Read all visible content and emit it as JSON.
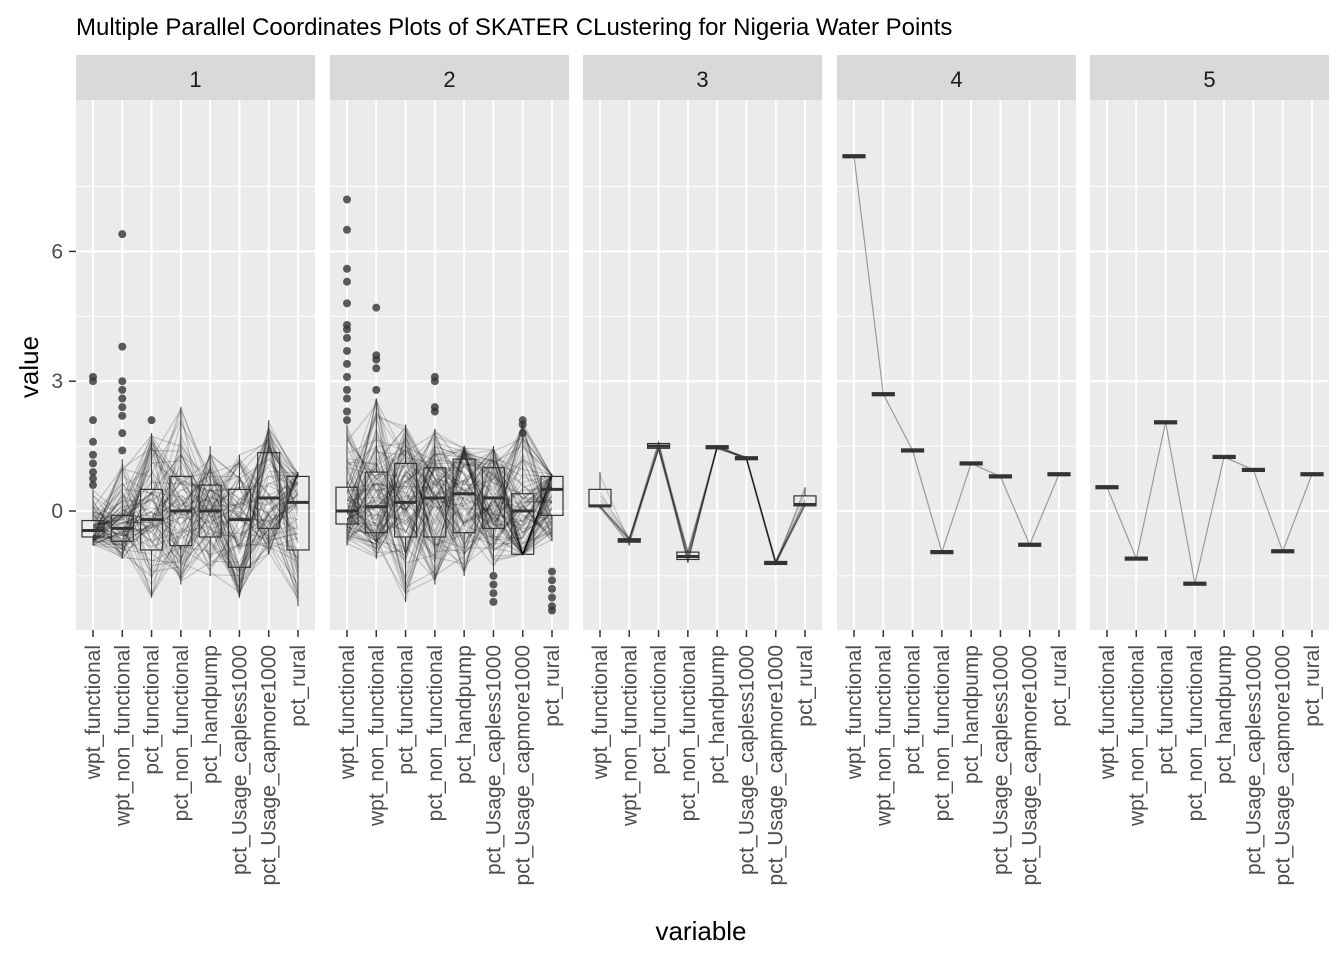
{
  "chart_data": {
    "type": "line",
    "title": "Multiple Parallel Coordinates Plots of SKATER CLustering for Nigeria Water Points",
    "xlabel": "variable",
    "ylabel": "value",
    "ylim": [
      -2.75,
      9.5
    ],
    "yticks": [
      0,
      3,
      6
    ],
    "grid": true,
    "legend": "none",
    "facets": [
      "1",
      "2",
      "3",
      "4",
      "5"
    ],
    "variables": [
      "wpt_functional",
      "wpt_non_functional",
      "pct_functional",
      "pct_non_functional",
      "pct_handpump",
      "pct_Usage_capless1000",
      "pct_Usage_capmore1000",
      "pct_rural"
    ],
    "panels": [
      {
        "cluster": "1",
        "boxplots": [
          {
            "min": -0.8,
            "q1": -0.6,
            "median": -0.45,
            "q3": -0.22,
            "max": 0.5,
            "outliers": [
              0.6,
              0.75,
              0.9,
              1.1,
              1.3,
              1.6,
              2.1,
              3.0,
              3.1
            ]
          },
          {
            "min": -1.1,
            "q1": -0.7,
            "median": -0.4,
            "q3": -0.1,
            "max": 1.2,
            "outliers": [
              1.4,
              1.8,
              2.2,
              2.4,
              2.6,
              2.8,
              3.0,
              3.8,
              6.4
            ]
          },
          {
            "min": -2.0,
            "q1": -0.9,
            "median": -0.2,
            "q3": 0.5,
            "max": 1.8,
            "outliers": [
              2.1
            ]
          },
          {
            "min": -1.7,
            "q1": -0.8,
            "median": 0.0,
            "q3": 0.8,
            "max": 2.4,
            "outliers": []
          },
          {
            "min": -1.5,
            "q1": -0.6,
            "median": 0.0,
            "q3": 0.6,
            "max": 1.5,
            "outliers": []
          },
          {
            "min": -2.0,
            "q1": -1.3,
            "median": -0.2,
            "q3": 0.5,
            "max": 1.3,
            "outliers": []
          },
          {
            "min": -1.0,
            "q1": -0.4,
            "median": 0.3,
            "q3": 1.35,
            "max": 2.1,
            "outliers": []
          },
          {
            "min": -2.2,
            "q1": -0.9,
            "median": 0.2,
            "q3": 0.8,
            "max": 0.9,
            "outliers": []
          }
        ]
      },
      {
        "cluster": "2",
        "boxplots": [
          {
            "min": -0.8,
            "q1": -0.3,
            "median": 0.0,
            "q3": 0.55,
            "max": 2.0,
            "outliers": [
              2.1,
              2.3,
              2.6,
              2.8,
              3.1,
              3.4,
              3.7,
              4.0,
              4.2,
              4.3,
              4.8,
              5.3,
              5.6,
              6.5,
              7.2
            ]
          },
          {
            "min": -1.1,
            "q1": -0.5,
            "median": 0.1,
            "q3": 0.9,
            "max": 2.6,
            "outliers": [
              2.8,
              3.3,
              3.5,
              3.6,
              4.7
            ]
          },
          {
            "min": -2.1,
            "q1": -0.6,
            "median": 0.2,
            "q3": 1.1,
            "max": 2.0,
            "outliers": []
          },
          {
            "min": -1.7,
            "q1": -0.6,
            "median": 0.3,
            "q3": 1.0,
            "max": 1.9,
            "outliers": [
              2.3,
              2.4,
              3.0,
              3.1
            ]
          },
          {
            "min": -1.5,
            "q1": -0.5,
            "median": 0.4,
            "q3": 1.2,
            "max": 1.5,
            "outliers": []
          },
          {
            "min": -1.4,
            "q1": -0.4,
            "median": 0.3,
            "q3": 1.0,
            "max": 1.5,
            "outliers": [
              -1.5,
              -1.7,
              -1.9,
              -2.1
            ]
          },
          {
            "min": -1.0,
            "q1": -1.0,
            "median": 0.0,
            "q3": 0.4,
            "max": 2.1,
            "outliers": [
              1.8,
              2.0,
              2.1
            ]
          },
          {
            "min": -0.7,
            "q1": -0.1,
            "median": 0.5,
            "q3": 0.8,
            "max": 0.85,
            "outliers": [
              -1.4,
              -1.6,
              -1.8,
              -2.0,
              -2.2,
              -2.3
            ]
          }
        ]
      },
      {
        "cluster": "3",
        "boxplots": [
          {
            "min": 0.05,
            "q1": 0.1,
            "median": 0.12,
            "q3": 0.5,
            "max": 0.9,
            "outliers": []
          },
          {
            "min": -0.8,
            "q1": -0.72,
            "median": -0.68,
            "q3": -0.64,
            "max": -0.6,
            "outliers": []
          },
          {
            "min": 1.4,
            "q1": 1.45,
            "median": 1.5,
            "q3": 1.56,
            "max": 1.6,
            "outliers": []
          },
          {
            "min": -1.2,
            "q1": -1.12,
            "median": -1.05,
            "q3": -0.95,
            "max": -0.9,
            "outliers": []
          },
          {
            "min": 1.42,
            "q1": 1.45,
            "median": 1.48,
            "q3": 1.5,
            "max": 1.52,
            "outliers": []
          },
          {
            "min": 1.18,
            "q1": 1.2,
            "median": 1.22,
            "q3": 1.24,
            "max": 1.26,
            "outliers": []
          },
          {
            "min": -1.25,
            "q1": -1.22,
            "median": -1.2,
            "q3": -1.18,
            "max": -1.15,
            "outliers": []
          },
          {
            "min": 0.1,
            "q1": 0.12,
            "median": 0.15,
            "q3": 0.35,
            "max": 0.55,
            "outliers": []
          }
        ]
      },
      {
        "cluster": "4",
        "boxplots": [
          {
            "min": 8.2,
            "q1": 8.2,
            "median": 8.2,
            "q3": 8.2,
            "max": 8.2,
            "outliers": []
          },
          {
            "min": 2.7,
            "q1": 2.7,
            "median": 2.7,
            "q3": 2.7,
            "max": 2.7,
            "outliers": []
          },
          {
            "min": 1.4,
            "q1": 1.4,
            "median": 1.4,
            "q3": 1.4,
            "max": 1.4,
            "outliers": []
          },
          {
            "min": -0.95,
            "q1": -0.95,
            "median": -0.95,
            "q3": -0.95,
            "max": -0.95,
            "outliers": []
          },
          {
            "min": 1.1,
            "q1": 1.1,
            "median": 1.1,
            "q3": 1.1,
            "max": 1.1,
            "outliers": []
          },
          {
            "min": 0.8,
            "q1": 0.8,
            "median": 0.8,
            "q3": 0.8,
            "max": 0.8,
            "outliers": []
          },
          {
            "min": -0.78,
            "q1": -0.78,
            "median": -0.78,
            "q3": -0.78,
            "max": -0.78,
            "outliers": []
          },
          {
            "min": 0.85,
            "q1": 0.85,
            "median": 0.85,
            "q3": 0.85,
            "max": 0.85,
            "outliers": []
          }
        ]
      },
      {
        "cluster": "5",
        "boxplots": [
          {
            "min": 0.55,
            "q1": 0.55,
            "median": 0.55,
            "q3": 0.55,
            "max": 0.55,
            "outliers": []
          },
          {
            "min": -1.1,
            "q1": -1.1,
            "median": -1.1,
            "q3": -1.1,
            "max": -1.1,
            "outliers": []
          },
          {
            "min": 2.05,
            "q1": 2.05,
            "median": 2.05,
            "q3": 2.05,
            "max": 2.05,
            "outliers": []
          },
          {
            "min": -1.68,
            "q1": -1.68,
            "median": -1.68,
            "q3": -1.68,
            "max": -1.68,
            "outliers": []
          },
          {
            "min": 1.25,
            "q1": 1.25,
            "median": 1.25,
            "q3": 1.25,
            "max": 1.25,
            "outliers": []
          },
          {
            "min": 0.95,
            "q1": 0.95,
            "median": 0.95,
            "q3": 0.95,
            "max": 0.95,
            "outliers": []
          },
          {
            "min": -0.93,
            "q1": -0.93,
            "median": -0.93,
            "q3": -0.93,
            "max": -0.93,
            "outliers": []
          },
          {
            "min": 0.85,
            "q1": 0.85,
            "median": 0.85,
            "q3": 0.85,
            "max": 0.85,
            "outliers": []
          }
        ]
      }
    ],
    "line_color": "#000000",
    "panel_background": "#ebebeb",
    "strip_background": "#d9d9d9",
    "grid_color": "#ffffff"
  }
}
